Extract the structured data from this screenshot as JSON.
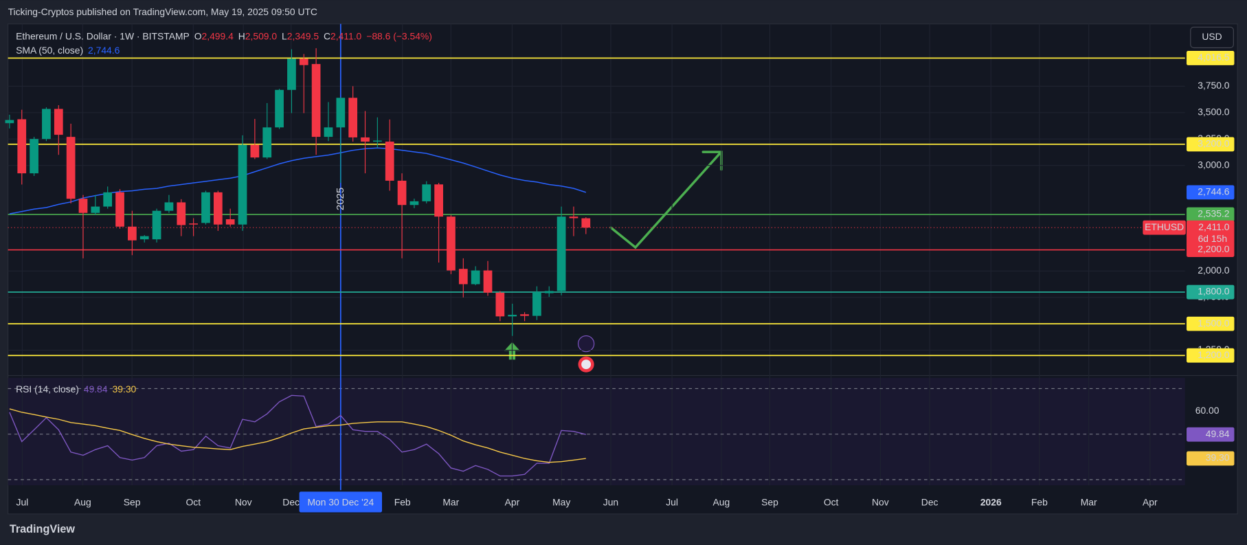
{
  "header": {
    "attribution": "Ticking-Cryptos published on TradingView.com, May 19, 2025 09:50 UTC"
  },
  "footer": {
    "brand": "TradingView"
  },
  "chart_data": {
    "type": "candlestick",
    "title": "Ethereum / U.S. Dollar · 1W · BITSTAMP",
    "currency": "USD",
    "legend": {
      "items": [
        {
          "key": "O",
          "value": "2,499.4"
        },
        {
          "key": "H",
          "value": "2,509.0"
        },
        {
          "key": "L",
          "value": "2,349.5"
        },
        {
          "key": "C",
          "value": "2,411.0"
        }
      ],
      "change": "−88.6 (−3.54%)"
    },
    "series": [
      {
        "name": "ETHUSD",
        "up_color": "#089981",
        "down_color": "#f23645",
        "open": [
          3400,
          3437,
          2925,
          3250,
          3535,
          3270,
          2684,
          2550,
          2610,
          2745,
          2420,
          2300,
          2300,
          2570,
          2650,
          2450,
          2455,
          2745,
          2490,
          2440,
          3195,
          3075,
          3360,
          3715,
          4010,
          3960,
          3270,
          3360,
          3640,
          3265,
          3225,
          3225,
          2855,
          2625,
          2660,
          2820,
          2515,
          2020,
          1875,
          2005,
          1795,
          1570,
          1590,
          1575,
          1790,
          1810,
          2515,
          2499.4
        ],
        "high": [
          3480,
          3527,
          3270,
          3550,
          3570,
          3395,
          2720,
          2720,
          2800,
          2775,
          2570,
          2340,
          2590,
          2720,
          2680,
          2500,
          2760,
          2760,
          2590,
          3285,
          3440,
          3590,
          3725,
          4100,
          4055,
          4110,
          3600,
          3645,
          3750,
          3515,
          3455,
          3435,
          2925,
          2685,
          2850,
          2835,
          2530,
          2120,
          2045,
          2095,
          1810,
          1690,
          1610,
          1855,
          1855,
          2610,
          2610,
          2509
        ],
        "low": [
          3350,
          2819,
          2900,
          3230,
          3100,
          2640,
          2120,
          2530,
          2590,
          2400,
          2150,
          2270,
          2270,
          2550,
          2330,
          2330,
          2440,
          2380,
          2420,
          2380,
          3060,
          3060,
          3345,
          3495,
          3495,
          3100,
          3230,
          2835,
          3225,
          2925,
          3165,
          2760,
          2120,
          2595,
          2640,
          2080,
          1970,
          1750,
          1865,
          1765,
          1525,
          1385,
          1525,
          1535,
          1755,
          1770,
          2330,
          2349.5
        ],
        "close": [
          3430,
          2925,
          3250,
          3535,
          3290,
          2684,
          2550,
          2610,
          2745,
          2420,
          2290,
          2330,
          2570,
          2650,
          2435,
          2440,
          2745,
          2440,
          2440,
          3195,
          3075,
          3360,
          3715,
          4010,
          3950,
          3270,
          3360,
          3640,
          3265,
          3225,
          3235,
          2855,
          2625,
          2660,
          2820,
          2515,
          2005,
          1875,
          2005,
          1795,
          1570,
          1585,
          1575,
          1800,
          1810,
          2515,
          2500,
          2411
        ]
      }
    ],
    "sma": {
      "name": "SMA (50, close)",
      "value_label": "2,744.6",
      "color": "#2962ff",
      "values": [
        2541,
        2563,
        2586,
        2601,
        2631,
        2654,
        2691,
        2714,
        2736,
        2752,
        2759,
        2774,
        2782,
        2804,
        2819,
        2834,
        2849,
        2864,
        2879,
        2902,
        2940,
        2977,
        3015,
        3045,
        3068,
        3083,
        3098,
        3120,
        3143,
        3158,
        3165,
        3158,
        3143,
        3128,
        3113,
        3083,
        3053,
        3022,
        2985,
        2947,
        2909,
        2879,
        2857,
        2842,
        2819,
        2804,
        2782,
        2744.6
      ]
    },
    "ylim": [
      1010,
      4340
    ],
    "yticks": [
      {
        "value": 3750,
        "label": "3,750.0"
      },
      {
        "value": 3500,
        "label": "3,500.0"
      },
      {
        "value": 3250,
        "label": "3,250.0"
      },
      {
        "value": 3000,
        "label": "3,000.0"
      },
      {
        "value": 2000,
        "label": "2,000.0"
      },
      {
        "value": 1750,
        "label": "1,750.0"
      },
      {
        "value": 1250,
        "label": "1,250.0"
      }
    ],
    "grid": true,
    "levels": [
      {
        "value": 4016.5,
        "label": "4,016.5",
        "color": "#ffeb3b"
      },
      {
        "value": 3200,
        "label": "3,200.0",
        "color": "#ffeb3b"
      },
      {
        "value": 2535.2,
        "label": "2,535.2",
        "color": "#4caf50"
      },
      {
        "value": 2200,
        "label": "2,200.0",
        "color": "#f23645"
      },
      {
        "value": 1800,
        "label": "1,800.0",
        "color": "#22ab94"
      },
      {
        "value": 1500,
        "label": "1,500.0",
        "color": "#ffeb3b"
      },
      {
        "value": 1200,
        "label": "1,200.0",
        "color": "#ffeb3b"
      }
    ],
    "last_price": {
      "value": 2411,
      "label": "2,411.0",
      "symbol": "ETHUSD",
      "countdown": "6d 15h",
      "color": "#f23645"
    },
    "x_labels": [
      "Jul",
      "Aug",
      "Sep",
      "Oct",
      "Nov",
      "Dec",
      "Feb",
      "Mar",
      "Apr",
      "May",
      "Jun",
      "Jul",
      "Aug",
      "Sep",
      "Oct",
      "Nov",
      "Dec",
      "2026",
      "Feb",
      "Mar",
      "Apr"
    ],
    "crosshair": {
      "label": "Mon 30 Dec '24",
      "year": "2025"
    },
    "rsi": {
      "name": "RSI (14, close)",
      "ylim": [
        27.5,
        74.7
      ],
      "yticks": [
        {
          "value": 60,
          "label": "60.00"
        }
      ],
      "levels": [
        70,
        50,
        30
      ],
      "series": [
        {
          "color": "#7e57c2",
          "value_label": "49.84",
          "values": [
            59.6,
            46.7,
            51.9,
            57.2,
            51.9,
            42.1,
            40.7,
            43.2,
            44.9,
            39.7,
            38.6,
            39.7,
            44.9,
            46.0,
            42.5,
            43.2,
            49.1,
            44.9,
            43.9,
            56.5,
            55.4,
            58.9,
            64.2,
            67.0,
            66.7,
            53.3,
            54.4,
            58.2,
            51.9,
            51.2,
            51.2,
            47.7,
            42.1,
            43.2,
            45.6,
            41.4,
            35.1,
            33.7,
            36.2,
            34.5,
            31.6,
            31.6,
            32.3,
            37.2,
            37.2,
            51.6,
            51.2,
            49.84
          ]
        },
        {
          "color": "#f7c948",
          "value_label": "39.30",
          "values": [
            61.1,
            59.6,
            58.6,
            57.5,
            56.5,
            55.1,
            54.4,
            53.7,
            52.6,
            51.6,
            49.8,
            48.1,
            46.7,
            45.6,
            44.9,
            44.2,
            43.9,
            43.5,
            43.2,
            44.6,
            45.6,
            46.7,
            48.4,
            50.5,
            52.3,
            53.0,
            53.7,
            54.0,
            54.7,
            55.1,
            55.4,
            55.4,
            55.4,
            54.4,
            53.3,
            51.6,
            49.5,
            47.0,
            45.3,
            43.9,
            42.1,
            40.7,
            39.3,
            38.3,
            37.6,
            37.9,
            38.6,
            39.3
          ]
        }
      ]
    }
  }
}
